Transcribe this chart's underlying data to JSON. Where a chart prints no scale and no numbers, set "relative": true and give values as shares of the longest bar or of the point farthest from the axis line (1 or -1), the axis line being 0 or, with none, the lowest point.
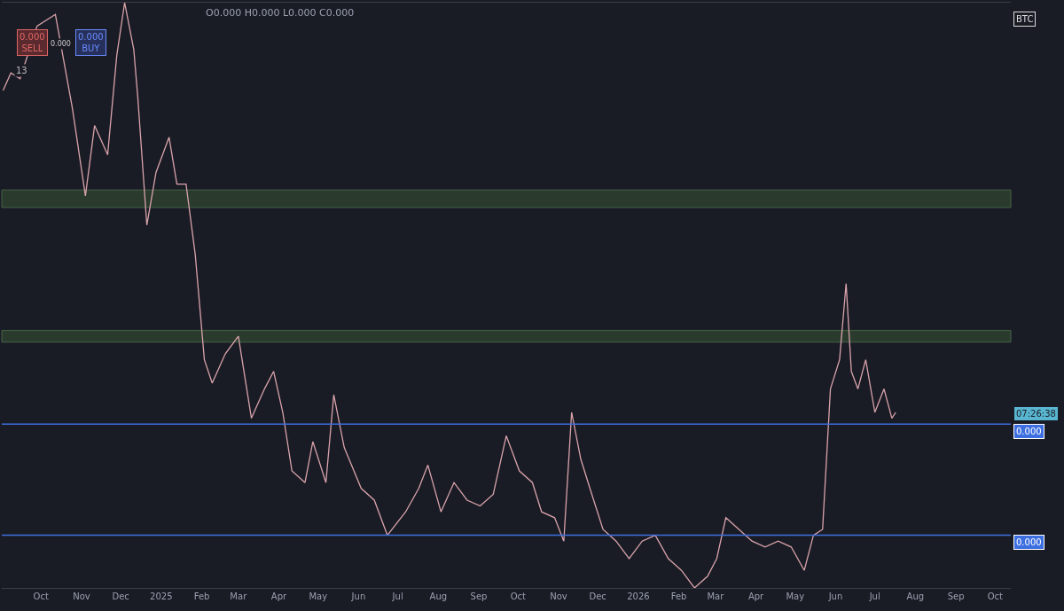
{
  "chart_data": {
    "type": "line",
    "relative": true,
    "grid": false,
    "marker": "none",
    "line_style": "solid",
    "x": [
      "2024-09-02",
      "2024-09-08",
      "2024-09-15",
      "2024-09-28",
      "2024-10-12",
      "2024-10-25",
      "2024-11-04",
      "2024-11-11",
      "2024-11-21",
      "2024-11-28",
      "2024-12-04",
      "2024-12-11",
      "2024-12-14",
      "2024-12-21",
      "2024-12-28",
      "2025-01-07",
      "2025-01-13",
      "2025-01-20",
      "2025-01-27",
      "2025-02-03",
      "2025-02-09",
      "2025-02-19",
      "2025-03-01",
      "2025-03-11",
      "2025-03-21",
      "2025-03-28",
      "2025-04-04",
      "2025-04-11",
      "2025-04-21",
      "2025-04-27",
      "2025-05-07",
      "2025-05-13",
      "2025-05-21",
      "2025-06-03",
      "2025-06-13",
      "2025-06-23",
      "2025-07-07",
      "2025-07-17",
      "2025-07-24",
      "2025-08-03",
      "2025-08-13",
      "2025-08-23",
      "2025-09-02",
      "2025-09-12",
      "2025-09-22",
      "2025-10-02",
      "2025-10-12",
      "2025-10-19",
      "2025-10-29",
      "2025-11-05",
      "2025-11-11",
      "2025-11-18",
      "2025-11-25",
      "2025-12-05",
      "2025-12-15",
      "2025-12-25",
      "2026-01-04",
      "2026-01-14",
      "2026-01-24",
      "2026-02-03",
      "2026-02-13",
      "2026-02-23",
      "2026-03-02",
      "2026-03-09",
      "2026-03-19",
      "2026-03-29",
      "2026-04-08",
      "2026-04-18",
      "2026-04-28",
      "2026-05-08",
      "2026-05-15",
      "2026-05-22",
      "2026-05-28",
      "2026-06-04",
      "2026-06-09",
      "2026-06-13",
      "2026-06-18",
      "2026-06-24",
      "2026-07-01",
      "2026-07-08",
      "2026-07-14",
      "2026-07-17"
    ],
    "series": [
      {
        "color": "#d9a3ab",
        "values": [
          0.85,
          0.88,
          0.87,
          0.96,
          0.98,
          0.82,
          0.67,
          0.79,
          0.74,
          0.91,
          1,
          0.92,
          0.84,
          0.62,
          0.71,
          0.77,
          0.69,
          0.69,
          0.57,
          0.39,
          0.35,
          0.4,
          0.43,
          0.29,
          0.34,
          0.37,
          0.3,
          0.2,
          0.18,
          0.25,
          0.18,
          0.33,
          0.24,
          0.17,
          0.15,
          0.09,
          0.13,
          0.17,
          0.21,
          0.13,
          0.18,
          0.15,
          0.14,
          0.16,
          0.26,
          0.2,
          0.18,
          0.13,
          0.12,
          0.08,
          0.3,
          0.22,
          0.17,
          0.1,
          0.08,
          0.05,
          0.08,
          0.09,
          0.05,
          0.03,
          0,
          0.02,
          0.05,
          0.12,
          0.1,
          0.08,
          0.07,
          0.08,
          0.07,
          0.03,
          0.09,
          0.1,
          0.34,
          0.39,
          0.52,
          0.37,
          0.34,
          0.39,
          0.3,
          0.34,
          0.29,
          0.3
        ]
      }
    ],
    "xlim": [
      "2024-09-01",
      "2026-10-13"
    ],
    "xticks": [
      {
        "value": "2024-10-01",
        "label": "Oct"
      },
      {
        "value": "2024-11-01",
        "label": "Nov"
      },
      {
        "value": "2024-12-01",
        "label": "Dec"
      },
      {
        "value": "2025-01-01",
        "label": "2025"
      },
      {
        "value": "2025-02-01",
        "label": "Feb"
      },
      {
        "value": "2025-03-01",
        "label": "Mar"
      },
      {
        "value": "2025-04-01",
        "label": "Apr"
      },
      {
        "value": "2025-05-01",
        "label": "May"
      },
      {
        "value": "2025-06-01",
        "label": "Jun"
      },
      {
        "value": "2025-07-01",
        "label": "Jul"
      },
      {
        "value": "2025-08-01",
        "label": "Aug"
      },
      {
        "value": "2025-09-01",
        "label": "Sep"
      },
      {
        "value": "2025-10-01",
        "label": "Oct"
      },
      {
        "value": "2025-11-01",
        "label": "Nov"
      },
      {
        "value": "2025-12-01",
        "label": "Dec"
      },
      {
        "value": "2026-01-01",
        "label": "2026"
      },
      {
        "value": "2026-02-01",
        "label": "Feb"
      },
      {
        "value": "2026-03-01",
        "label": "Mar"
      },
      {
        "value": "2026-04-01",
        "label": "Apr"
      },
      {
        "value": "2026-05-01",
        "label": "May"
      },
      {
        "value": "2026-06-01",
        "label": "Jun"
      },
      {
        "value": "2026-07-01",
        "label": "Jul"
      },
      {
        "value": "2026-08-01",
        "label": "Aug"
      },
      {
        "value": "2026-09-01",
        "label": "Sep"
      },
      {
        "value": "2026-10-01",
        "label": "Oct"
      }
    ],
    "bands": [
      {
        "axis": "y",
        "from": 0.65,
        "to": 0.68,
        "color": "#2c3f2e"
      },
      {
        "axis": "y",
        "from": 0.42,
        "to": 0.44,
        "color": "#2c3f2e"
      }
    ],
    "ref_lines": [
      {
        "axis": "y",
        "value": 0.28,
        "color": "#3d6fe0"
      },
      {
        "axis": "y",
        "value": 0.09,
        "color": "#3d6fe0"
      }
    ],
    "annotations": [
      "O0.000 H0.000 L0.000 C0.000",
      "0.000 SELL",
      "0.000",
      "0.000 BUY",
      "13",
      "BTC",
      "07:26:38",
      "0.000",
      "0.000"
    ]
  }
}
